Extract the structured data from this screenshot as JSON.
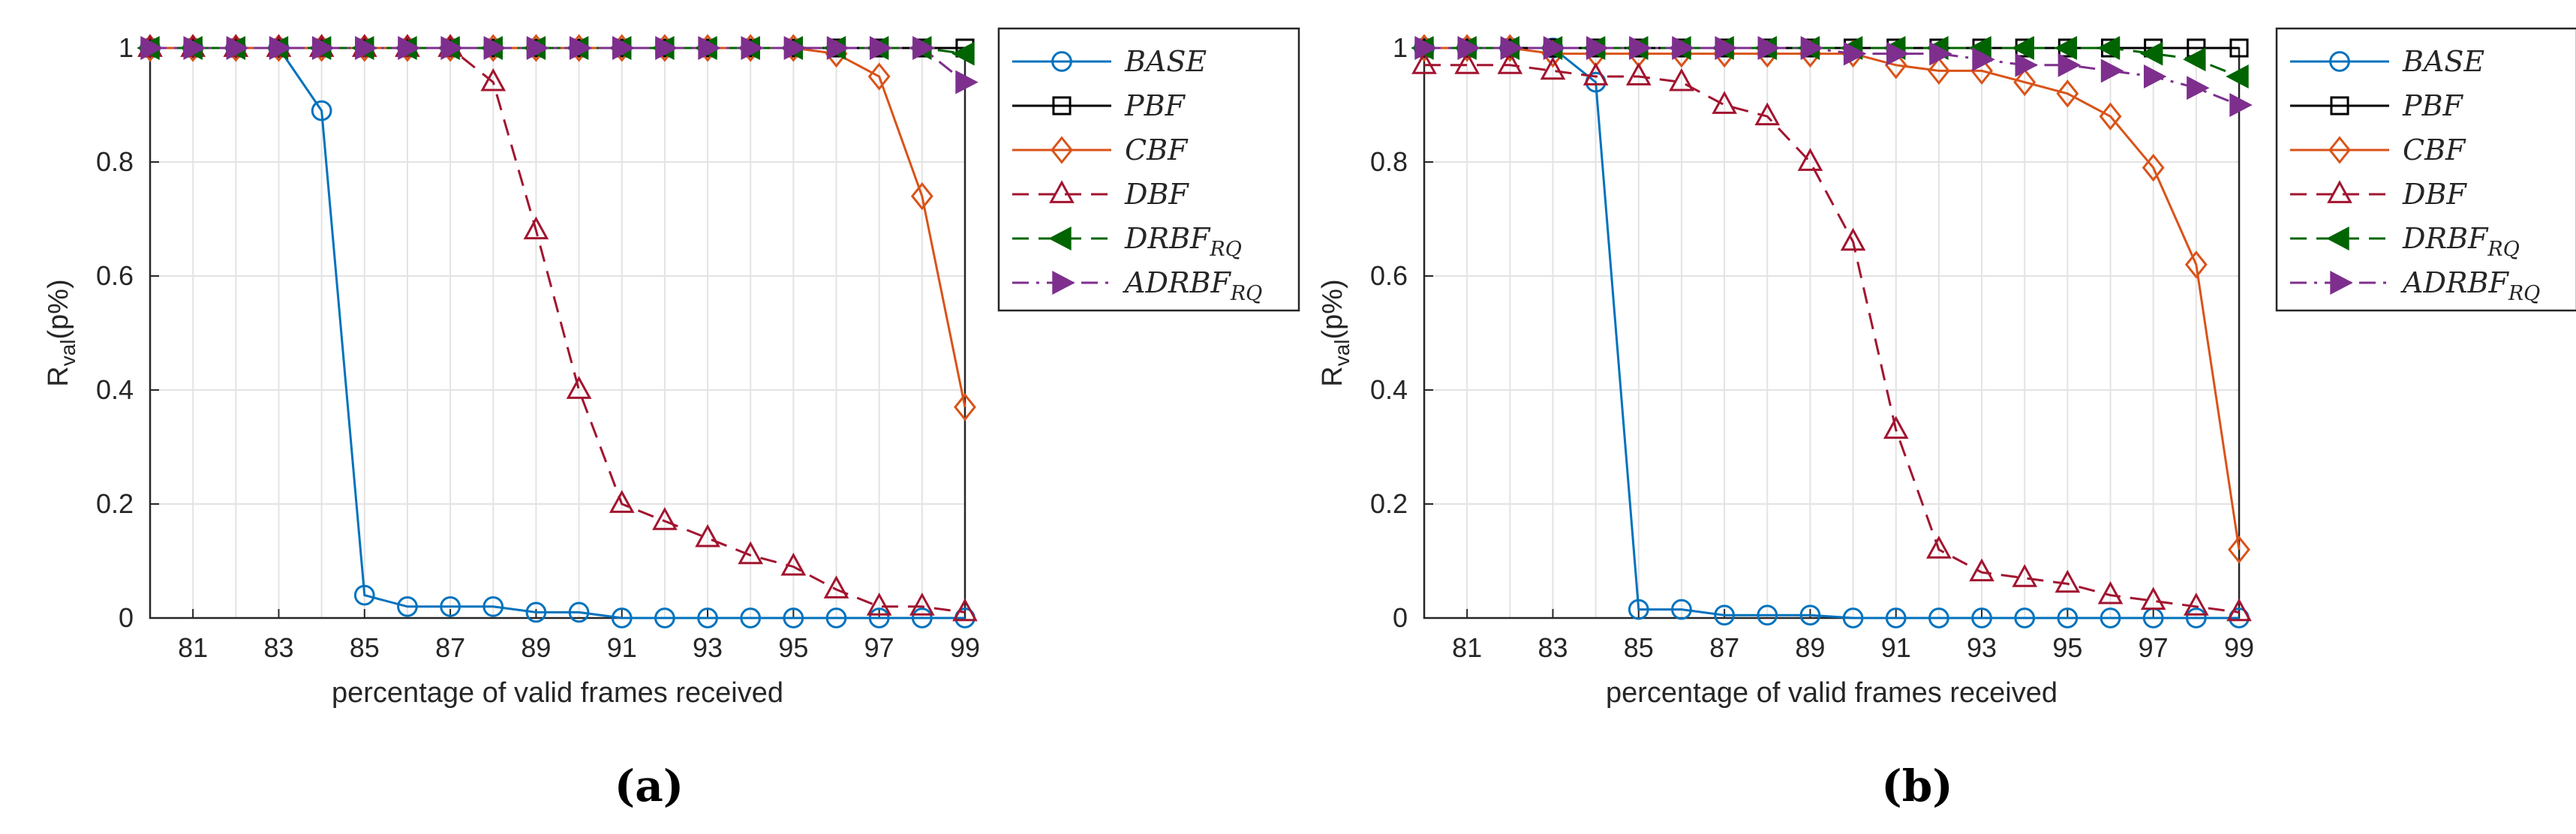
{
  "figure": {
    "x_axis_label": "percentage of valid frames received",
    "y_axis_label_main": "R",
    "y_axis_label_sub": "val",
    "y_axis_label_tail": "(p%)"
  },
  "chart_data": [
    {
      "type": "line",
      "panel_label": "(a)",
      "xlabel": "percentage of valid frames received",
      "ylabel": "Rval(p%)",
      "xlim": [
        80,
        99
      ],
      "ylim": [
        0,
        1
      ],
      "grid": true,
      "legend_position": "outside-right",
      "x_ticks": [
        81,
        83,
        85,
        87,
        89,
        91,
        93,
        95,
        97,
        99
      ],
      "y_ticks": [
        0,
        0.2,
        0.4,
        0.6,
        0.8,
        1
      ],
      "x": [
        80,
        81,
        82,
        83,
        84,
        85,
        86,
        87,
        88,
        89,
        90,
        91,
        92,
        93,
        94,
        95,
        96,
        97,
        98,
        99
      ],
      "series": [
        {
          "name": "BASE",
          "color": "#0072BD",
          "marker": "circle",
          "dash": "solid",
          "values": [
            1,
            1,
            1,
            1,
            0.89,
            0.04,
            0.02,
            0.02,
            0.02,
            0.01,
            0.01,
            0,
            0,
            0,
            0,
            0,
            0,
            0,
            0,
            0
          ]
        },
        {
          "name": "PBF",
          "color": "#000000",
          "marker": "square",
          "dash": "solid",
          "values": [
            1,
            1,
            1,
            1,
            1,
            1,
            1,
            1,
            1,
            1,
            1,
            1,
            1,
            1,
            1,
            1,
            1,
            1,
            1,
            1
          ]
        },
        {
          "name": "CBF",
          "color": "#D95319",
          "marker": "diamond",
          "dash": "solid",
          "values": [
            1,
            1,
            1,
            1,
            1,
            1,
            1,
            1,
            1,
            1,
            1,
            1,
            1,
            1,
            1,
            1,
            0.99,
            0.95,
            0.74,
            0.37
          ]
        },
        {
          "name": "DBF",
          "color": "#A2142F",
          "marker": "triangle-up",
          "dash": "dashed",
          "values": [
            1,
            1,
            1,
            1,
            1,
            1,
            1,
            1,
            0.94,
            0.68,
            0.4,
            0.2,
            0.17,
            0.14,
            0.11,
            0.09,
            0.05,
            0.02,
            0.02,
            0.01
          ]
        },
        {
          "name": "DRBF",
          "subscript": "RQ",
          "color": "#006400",
          "marker": "triangle-left",
          "dash": "dashed",
          "values": [
            1,
            1,
            1,
            1,
            1,
            1,
            1,
            1,
            1,
            1,
            1,
            1,
            1,
            1,
            1,
            1,
            1,
            1,
            1,
            0.99
          ]
        },
        {
          "name": "ADRBF",
          "subscript": "RQ",
          "color": "#7E2F8E",
          "marker": "triangle-right",
          "dash": "dashdot",
          "values": [
            1,
            1,
            1,
            1,
            1,
            1,
            1,
            1,
            1,
            1,
            1,
            1,
            1,
            1,
            1,
            1,
            1,
            1,
            1,
            0.94
          ]
        }
      ]
    },
    {
      "type": "line",
      "panel_label": "(b)",
      "xlabel": "percentage of valid frames received",
      "ylabel": "Rval(p%)",
      "xlim": [
        80,
        99
      ],
      "ylim": [
        0,
        1
      ],
      "grid": true,
      "legend_position": "outside-right",
      "x_ticks": [
        81,
        83,
        85,
        87,
        89,
        91,
        93,
        95,
        97,
        99
      ],
      "y_ticks": [
        0,
        0.2,
        0.4,
        0.6,
        0.8,
        1
      ],
      "x": [
        80,
        81,
        82,
        83,
        84,
        85,
        86,
        87,
        88,
        89,
        90,
        91,
        92,
        93,
        94,
        95,
        96,
        97,
        98,
        99
      ],
      "series": [
        {
          "name": "BASE",
          "color": "#0072BD",
          "marker": "circle",
          "dash": "solid",
          "values": [
            1,
            1,
            1,
            1,
            0.94,
            0.015,
            0.015,
            0.005,
            0.005,
            0.005,
            0,
            0,
            0,
            0,
            0,
            0,
            0,
            0,
            0,
            0
          ]
        },
        {
          "name": "PBF",
          "color": "#000000",
          "marker": "square",
          "dash": "solid",
          "values": [
            1,
            1,
            1,
            1,
            1,
            1,
            1,
            1,
            1,
            1,
            1,
            1,
            1,
            1,
            1,
            1,
            1,
            1,
            1,
            1
          ]
        },
        {
          "name": "CBF",
          "color": "#D95319",
          "marker": "diamond",
          "dash": "solid",
          "values": [
            1,
            1,
            1,
            0.99,
            0.99,
            0.99,
            0.99,
            0.99,
            0.99,
            0.99,
            0.99,
            0.97,
            0.96,
            0.96,
            0.94,
            0.92,
            0.88,
            0.79,
            0.62,
            0.12
          ]
        },
        {
          "name": "DBF",
          "color": "#A2142F",
          "marker": "triangle-up",
          "dash": "dashed",
          "values": [
            0.97,
            0.97,
            0.97,
            0.96,
            0.95,
            0.95,
            0.94,
            0.9,
            0.88,
            0.8,
            0.66,
            0.33,
            0.12,
            0.08,
            0.07,
            0.06,
            0.04,
            0.03,
            0.02,
            0.01
          ]
        },
        {
          "name": "DRBF",
          "subscript": "RQ",
          "color": "#006400",
          "marker": "triangle-left",
          "dash": "dashed",
          "values": [
            1,
            1,
            1,
            1,
            1,
            1,
            1,
            1,
            1,
            1,
            1,
            1,
            1,
            1,
            1,
            1,
            1,
            0.99,
            0.98,
            0.95
          ]
        },
        {
          "name": "ADRBF",
          "subscript": "RQ",
          "color": "#7E2F8E",
          "marker": "triangle-right",
          "dash": "dashdot",
          "values": [
            1,
            1,
            1,
            1,
            1,
            1,
            1,
            1,
            1,
            1,
            0.99,
            0.99,
            0.99,
            0.98,
            0.97,
            0.97,
            0.96,
            0.95,
            0.93,
            0.9
          ]
        }
      ]
    }
  ]
}
